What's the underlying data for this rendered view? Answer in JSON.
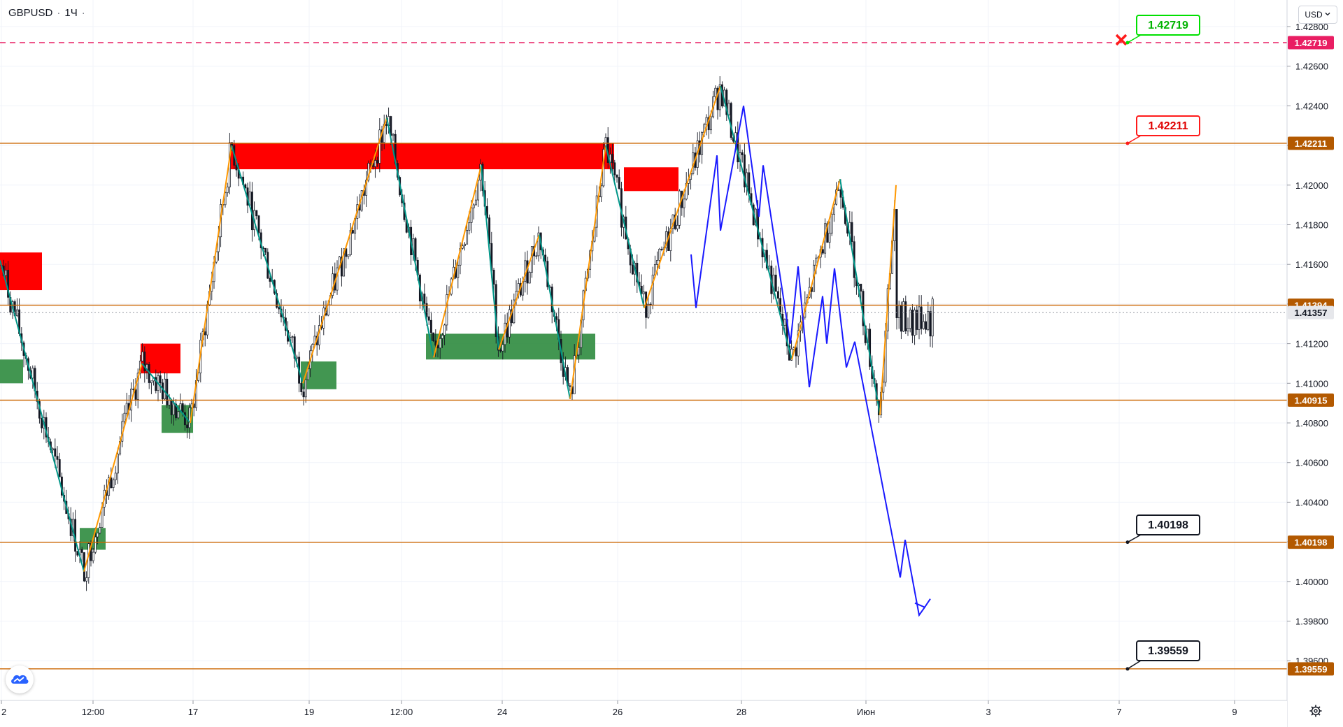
{
  "header": {
    "symbol": "GBPUSD",
    "separator": "·",
    "interval": "1Ч",
    "extra_dot": "·"
  },
  "toolbar": {
    "currency_label": "USD",
    "currency_icon": "chevron-down-icon",
    "settings_icon": "gear-icon",
    "logo_icon": "tradingview-logo-icon"
  },
  "colors": {
    "background": "#ffffff",
    "grid": "#f0f3fa",
    "axis_text": "#131722",
    "level_line": "#cc6600",
    "level_badge": "#b35900",
    "target_line": "#e91e63",
    "supply_zone": "#ff0000",
    "demand_zone": "#2e8b3e",
    "zigzag_up": "#ff9800",
    "zigzag_down": "#009688",
    "forecast": "#1a1aff",
    "candle": "#131722",
    "green_label_border": "#00e000",
    "red_label_border": "#ff1a1a"
  },
  "axes": {
    "y_ticks": [
      "1.42800",
      "1.42600",
      "1.42400",
      "1.42200",
      "1.42000",
      "1.41800",
      "1.41600",
      "1.41400",
      "1.41200",
      "1.41000",
      "1.40800",
      "1.40600",
      "1.40400",
      "1.40200",
      "1.40000",
      "1.39800",
      "1.39600"
    ],
    "x_ticks": [
      "2",
      "12:00",
      "17",
      "19",
      "12:00",
      "24",
      "26",
      "28",
      "Июн",
      "3",
      "7",
      "9"
    ]
  },
  "price_badges": {
    "target": "1.42719",
    "resistance": "1.42211",
    "pivot": "1.41394",
    "current": "1.41357",
    "support": "1.40915",
    "target1": "1.40198",
    "target2": "1.39559"
  },
  "callouts": {
    "target_label": "1.42719",
    "resistance_label": "1.42211",
    "target1_label": "1.40198",
    "target2_label": "1.39559"
  },
  "chart_data": {
    "type": "candlestick",
    "symbol": "GBPUSD",
    "interval": "1Ч",
    "ylim": [
      1.3942,
      1.4296
    ],
    "horizontal_levels": [
      1.42719,
      1.42211,
      1.41394,
      1.41357,
      1.40915,
      1.40198,
      1.39559
    ],
    "zigzag": [
      [
        0,
        1.4162
      ],
      [
        120,
        1.4005
      ],
      [
        203,
        1.411
      ],
      [
        272,
        1.408
      ],
      [
        331,
        1.422
      ],
      [
        433,
        1.41
      ],
      [
        553,
        1.4234
      ],
      [
        620,
        1.4113
      ],
      [
        688,
        1.421
      ],
      [
        713,
        1.4117
      ],
      [
        771,
        1.4175
      ],
      [
        815,
        1.4092
      ],
      [
        866,
        1.422
      ],
      [
        921,
        1.4138
      ],
      [
        1030,
        1.425
      ],
      [
        1132,
        1.4112
      ],
      [
        1201,
        1.4203
      ],
      [
        1258,
        1.4084
      ],
      [
        1281,
        1.42
      ]
    ],
    "forecast_path": [
      [
        988,
        1.4165
      ],
      [
        995,
        1.4138
      ],
      [
        1025,
        1.4215
      ],
      [
        1030,
        1.4177
      ],
      [
        1063,
        1.424
      ],
      [
        1085,
        1.4184
      ],
      [
        1091,
        1.421
      ],
      [
        1130,
        1.412
      ],
      [
        1141,
        1.4159
      ],
      [
        1157,
        1.4098
      ],
      [
        1176,
        1.4144
      ],
      [
        1182,
        1.412
      ],
      [
        1193,
        1.4158
      ],
      [
        1210,
        1.4108
      ],
      [
        1222,
        1.4121
      ],
      [
        1287,
        1.4002
      ],
      [
        1294,
        1.4021
      ],
      [
        1314,
        1.3983
      ],
      [
        1322,
        1.3987
      ]
    ],
    "zones": [
      {
        "kind": "supply",
        "x": [
          0,
          60
        ],
        "y": [
          1.4147,
          1.4166
        ]
      },
      {
        "kind": "demand",
        "x": [
          0,
          33
        ],
        "y": [
          1.41,
          1.4112
        ]
      },
      {
        "kind": "supply",
        "x": [
          201,
          258
        ],
        "y": [
          1.4105,
          1.412
        ]
      },
      {
        "kind": "demand",
        "x": [
          231,
          276
        ],
        "y": [
          1.4075,
          1.4089
        ]
      },
      {
        "kind": "demand",
        "x": [
          114,
          151
        ],
        "y": [
          1.4016,
          1.4027
        ]
      },
      {
        "kind": "supply",
        "x": [
          327,
          878
        ],
        "y": [
          1.4208,
          1.4221
        ]
      },
      {
        "kind": "demand",
        "x": [
          430,
          481
        ],
        "y": [
          1.4097,
          1.4111
        ]
      },
      {
        "kind": "demand",
        "x": [
          609,
          851
        ],
        "y": [
          1.4112,
          1.4125
        ]
      },
      {
        "kind": "supply",
        "x": [
          892,
          970
        ],
        "y": [
          1.4197,
          1.4209
        ]
      }
    ]
  }
}
